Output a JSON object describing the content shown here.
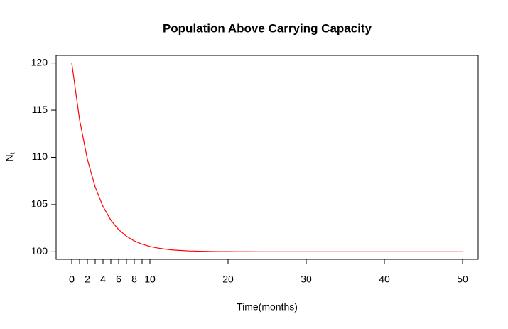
{
  "chart_data": {
    "type": "line",
    "title": "Population Above Carrying Capacity",
    "xlabel": "Time(months)",
    "ylabel": {
      "main": "N",
      "subscript": "t"
    },
    "color": "#ff0000",
    "x": [
      0,
      1,
      2,
      3,
      4,
      5,
      6,
      7,
      8,
      9,
      10,
      11,
      12,
      13,
      14,
      15,
      16,
      17,
      18,
      19,
      20,
      21,
      22,
      23,
      24,
      25,
      26,
      27,
      28,
      29,
      30,
      31,
      32,
      33,
      34,
      35,
      36,
      37,
      38,
      39,
      40,
      41,
      42,
      43,
      44,
      45,
      46,
      47,
      48,
      49,
      50
    ],
    "values": [
      120,
      114,
      109.8,
      106.86,
      104.8,
      103.36,
      102.35,
      101.65,
      101.15,
      100.81,
      100.56,
      100.4,
      100.28,
      100.19,
      100.14,
      100.09,
      100.07,
      100.05,
      100.03,
      100.02,
      100.02,
      100.01,
      100.01,
      100.01,
      100,
      100,
      100,
      100,
      100,
      100,
      100,
      100,
      100,
      100,
      100,
      100,
      100,
      100,
      100,
      100,
      100,
      100,
      100,
      100,
      100,
      100,
      100,
      100,
      100,
      100,
      100
    ],
    "xlim": [
      -2,
      52
    ],
    "ylim": [
      99.2,
      120.8
    ],
    "xticks": [
      0,
      10,
      20,
      30,
      40,
      50
    ],
    "xticks_fine": [
      0,
      {
        "value": 1,
        "label": null
      },
      2,
      {
        "value": 3,
        "label": null
      },
      4,
      {
        "value": 5,
        "label": null
      },
      6,
      {
        "value": 7,
        "label": null
      },
      8,
      {
        "value": 9,
        "label": null
      },
      10
    ],
    "yticks": [
      100,
      105,
      110,
      115,
      120
    ],
    "grid": false
  }
}
